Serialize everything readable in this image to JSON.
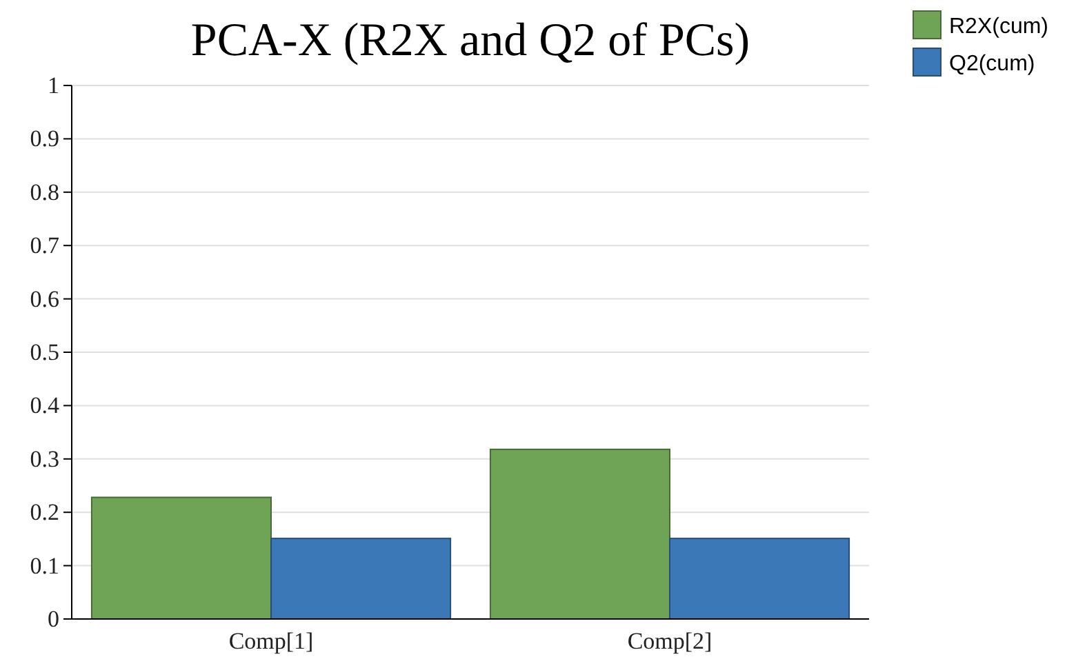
{
  "chart_data": {
    "type": "bar",
    "title": "PCA-X (R2X and Q2 of PCs)",
    "categories": [
      "Comp[1]",
      "Comp[2]"
    ],
    "series": [
      {
        "name": "R2X(cum)",
        "color": "#6fa355",
        "values": [
          0.228,
          0.318
        ]
      },
      {
        "name": "Q2(cum)",
        "color": "#3a78b8",
        "values": [
          0.151,
          0.151
        ]
      }
    ],
    "ylim": [
      0,
      1
    ],
    "yticks": [
      0,
      0.1,
      0.2,
      0.3,
      0.4,
      0.5,
      0.6,
      0.7,
      0.8,
      0.9,
      1
    ],
    "grid": "y",
    "legend": "top right"
  }
}
